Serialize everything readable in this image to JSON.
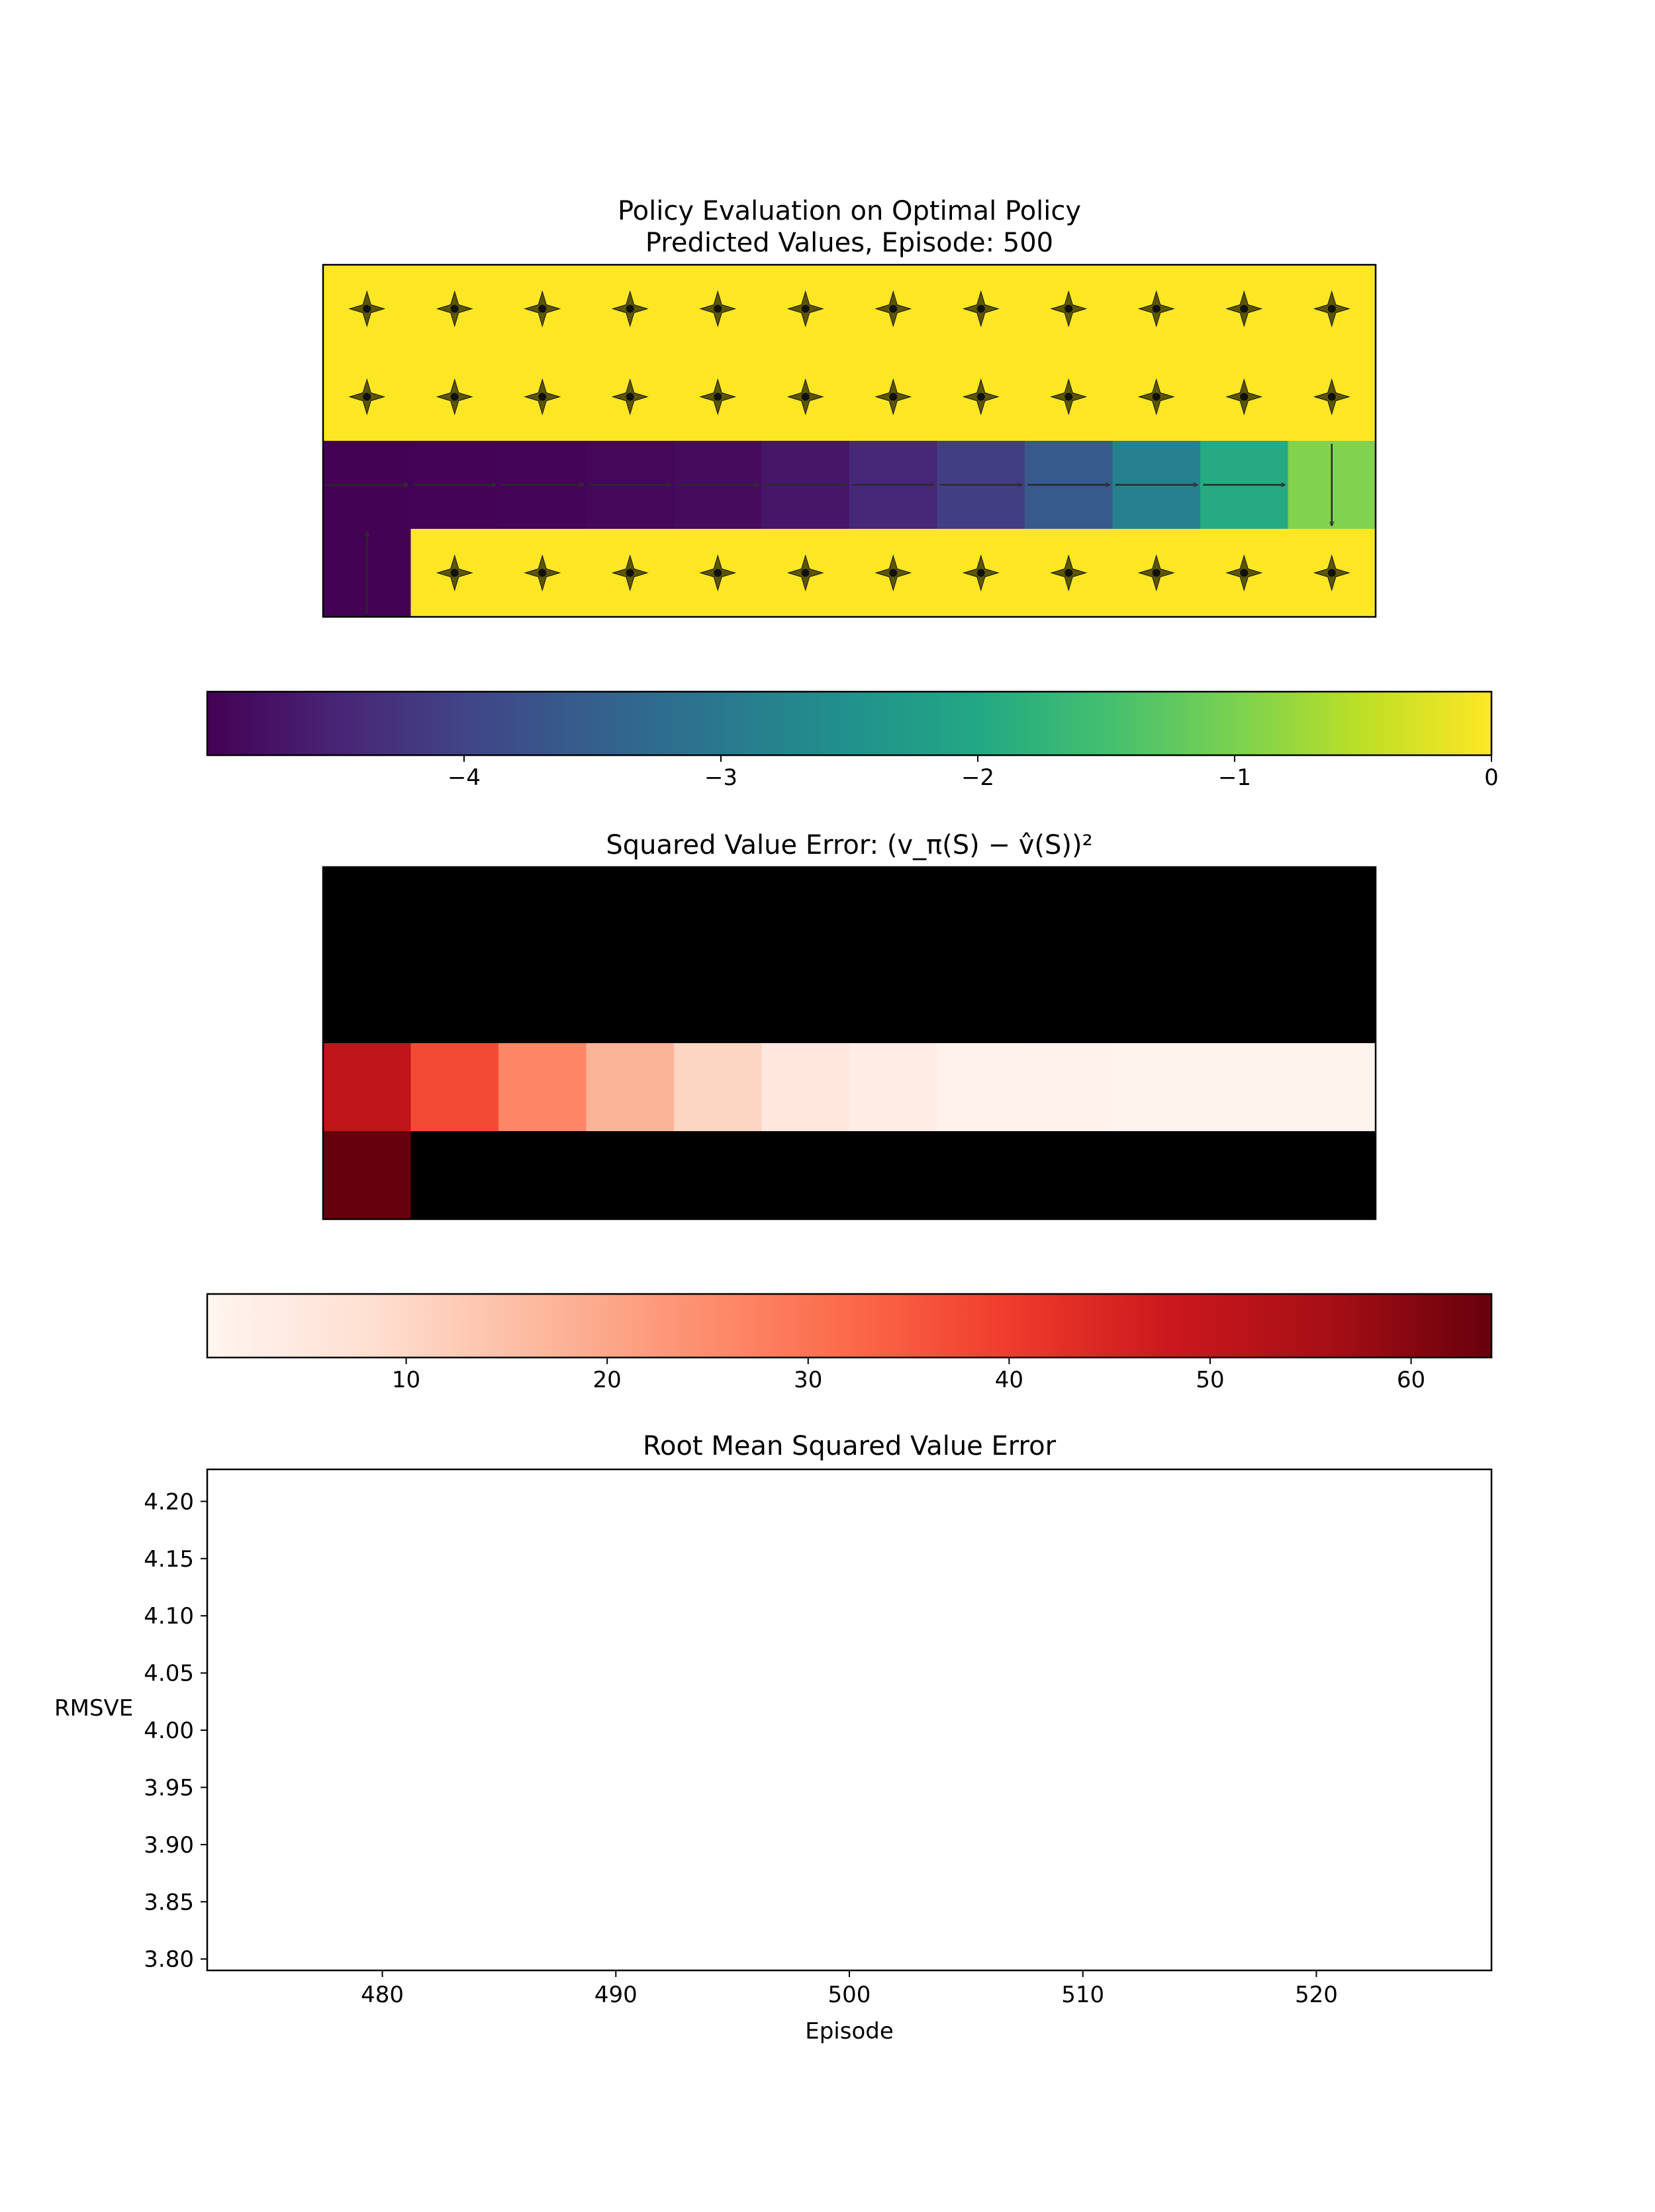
{
  "chart_data": [
    {
      "type": "heatmap",
      "title_line1": "Policy Evaluation on Optimal Policy",
      "title_line2": "Predicted Values, Episode: 500",
      "colormap": "viridis",
      "vmin": -5.0,
      "vmax": 0,
      "rows": 4,
      "cols": 12,
      "values": [
        [
          0,
          0,
          0,
          0,
          0,
          0,
          0,
          0,
          0,
          0,
          0,
          0
        ],
        [
          0,
          0,
          0,
          0,
          0,
          0,
          0,
          0,
          0,
          0,
          0,
          0
        ],
        [
          -4.98,
          -4.97,
          -4.95,
          -4.92,
          -4.85,
          -4.7,
          -4.45,
          -4.1,
          -3.6,
          -2.85,
          -1.95,
          -0.95
        ],
        [
          -4.99,
          0,
          0,
          0,
          0,
          0,
          0,
          0,
          0,
          0,
          0,
          0
        ]
      ],
      "arrows": [
        [
          "all",
          "all",
          "all",
          "all",
          "all",
          "all",
          "all",
          "all",
          "all",
          "all",
          "all",
          "all"
        ],
        [
          "all",
          "all",
          "all",
          "all",
          "all",
          "all",
          "all",
          "all",
          "all",
          "all",
          "all",
          "all"
        ],
        [
          "right",
          "right",
          "right",
          "right",
          "right",
          "right",
          "right",
          "right",
          "right",
          "right",
          "right",
          "down"
        ],
        [
          "up",
          "all",
          "all",
          "all",
          "all",
          "all",
          "all",
          "all",
          "all",
          "all",
          "all",
          "all"
        ]
      ]
    },
    {
      "type": "colorbar",
      "colormap": "viridis",
      "range": [
        -5.0,
        0
      ],
      "ticks": [
        -4,
        -3,
        -2,
        -1,
        0
      ],
      "tick_labels": [
        "−4",
        "−3",
        "−2",
        "−1",
        "0"
      ]
    },
    {
      "type": "heatmap",
      "title": "Squared Value Error: (v_π(S) − v̂(S))²",
      "colormap": "Reds",
      "vmin": 0.1,
      "vmax": 64,
      "masked_color": "#000000",
      "rows": 4,
      "cols": 12,
      "values": [
        [
          null,
          null,
          null,
          null,
          null,
          null,
          null,
          null,
          null,
          null,
          null,
          null
        ],
        [
          null,
          null,
          null,
          null,
          null,
          null,
          null,
          null,
          null,
          null,
          null,
          null
        ],
        [
          50.5,
          37.5,
          26.5,
          17.5,
          10.5,
          5.5,
          3.0,
          1.5,
          1.2,
          1.0,
          1.0,
          1.0
        ],
        [
          64,
          null,
          null,
          null,
          null,
          null,
          null,
          null,
          null,
          null,
          null,
          null
        ]
      ]
    },
    {
      "type": "colorbar",
      "colormap": "Reds",
      "range": [
        0.1,
        64
      ],
      "ticks": [
        10,
        20,
        30,
        40,
        50,
        60
      ],
      "tick_labels": [
        "10",
        "20",
        "30",
        "40",
        "50",
        "60"
      ]
    },
    {
      "type": "line",
      "title": "Root Mean Squared Value Error",
      "xlabel": "Episode",
      "ylabel": "RMSVE",
      "xlim": [
        472.5,
        527.5
      ],
      "ylim": [
        3.79,
        4.228
      ],
      "x": [],
      "y": [],
      "xticks": [
        480,
        490,
        500,
        510,
        520
      ],
      "yticks": [
        3.8,
        3.85,
        3.9,
        3.95,
        4.0,
        4.05,
        4.1,
        4.15,
        4.2
      ],
      "ytick_labels": [
        "3.80",
        "3.85",
        "3.90",
        "3.95",
        "4.00",
        "4.05",
        "4.10",
        "4.15",
        "4.20"
      ]
    }
  ]
}
